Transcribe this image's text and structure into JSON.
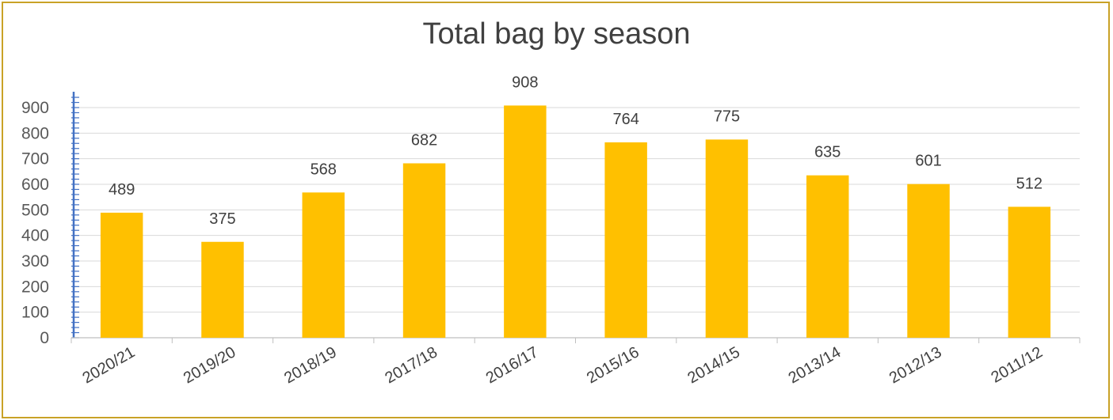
{
  "chart_data": {
    "type": "bar",
    "title": "Total bag by season",
    "categories": [
      "2020/21",
      "2019/20",
      "2018/19",
      "2017/18",
      "2016/17",
      "2015/16",
      "2014/15",
      "2013/14",
      "2012/13",
      "2011/12"
    ],
    "values": [
      489,
      375,
      568,
      682,
      908,
      764,
      775,
      635,
      601,
      512
    ],
    "yticks": [
      0,
      100,
      200,
      300,
      400,
      500,
      600,
      700,
      800,
      900
    ],
    "ylim": [
      0,
      900
    ],
    "grid": true,
    "legend": "none",
    "colors": {
      "bar": "#FFC000",
      "grid": "#D9D9D9",
      "axis_accent": "#4472C4",
      "frame": "#C9A227"
    }
  }
}
